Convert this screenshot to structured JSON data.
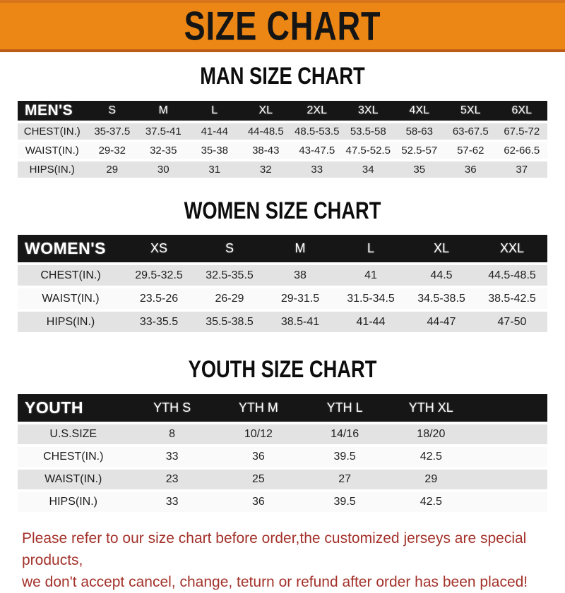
{
  "banner": {
    "title": "SIZE CHART",
    "bg_color": "#EC8715",
    "text_color": "#151515"
  },
  "tables": [
    {
      "id": "men",
      "heading": "MAN SIZE CHART",
      "label": "MEN'S",
      "columns": [
        "S",
        "M",
        "L",
        "XL",
        "2XL",
        "3XL",
        "4XL",
        "5XL",
        "6XL"
      ],
      "rows": [
        {
          "label": "CHEST(IN.)",
          "values": [
            "35-37.5",
            "37.5-41",
            "41-44",
            "44-48.5",
            "48.5-53.5",
            "53.5-58",
            "58-63",
            "63-67.5",
            "67.5-72"
          ]
        },
        {
          "label": "WAIST(IN.)",
          "values": [
            "29-32",
            "32-35",
            "35-38",
            "38-43",
            "43-47.5",
            "47.5-52.5",
            "52.5-57",
            "57-62",
            "62-66.5"
          ]
        },
        {
          "label": "HIPS(IN.)",
          "values": [
            "29",
            "30",
            "31",
            "32",
            "33",
            "34",
            "35",
            "36",
            "37"
          ]
        }
      ]
    },
    {
      "id": "women",
      "heading": "WOMEN SIZE CHART",
      "label": "WOMEN'S",
      "columns": [
        "XS",
        "S",
        "M",
        "L",
        "XL",
        "XXL"
      ],
      "rows": [
        {
          "label": "CHEST(IN.)",
          "values": [
            "29.5-32.5",
            "32.5-35.5",
            "38",
            "41",
            "44.5",
            "44.5-48.5"
          ]
        },
        {
          "label": "WAIST(IN.)",
          "values": [
            "23.5-26",
            "26-29",
            "29-31.5",
            "31.5-34.5",
            "34.5-38.5",
            "38.5-42.5"
          ]
        },
        {
          "label": "HIPS(IN.)",
          "values": [
            "33-35.5",
            "35.5-38.5",
            "38.5-41",
            "41-44",
            "44-47",
            "47-50"
          ]
        }
      ]
    },
    {
      "id": "youth",
      "heading": "YOUTH SIZE CHART",
      "label": "YOUTH",
      "trailing_blank_column": true,
      "columns": [
        "YTH S",
        "YTH M",
        "YTH L",
        "YTH XL"
      ],
      "rows": [
        {
          "label": "U.S.SIZE",
          "values": [
            "8",
            "10/12",
            "14/16",
            "18/20"
          ]
        },
        {
          "label": "CHEST(IN.)",
          "values": [
            "33",
            "36",
            "39.5",
            "42.5"
          ]
        },
        {
          "label": "WAIST(IN.)",
          "values": [
            "23",
            "25",
            "27",
            "29"
          ]
        },
        {
          "label": "HIPS(IN.)",
          "values": [
            "33",
            "36",
            "39.5",
            "42.5"
          ]
        }
      ]
    }
  ],
  "warning": {
    "color": "#A3322B",
    "line1": "Please refer to our size chart before order,the customized jerseys are special products,",
    "line2": "we don't accept cancel, change, teturn or refund after order has been placed!"
  }
}
